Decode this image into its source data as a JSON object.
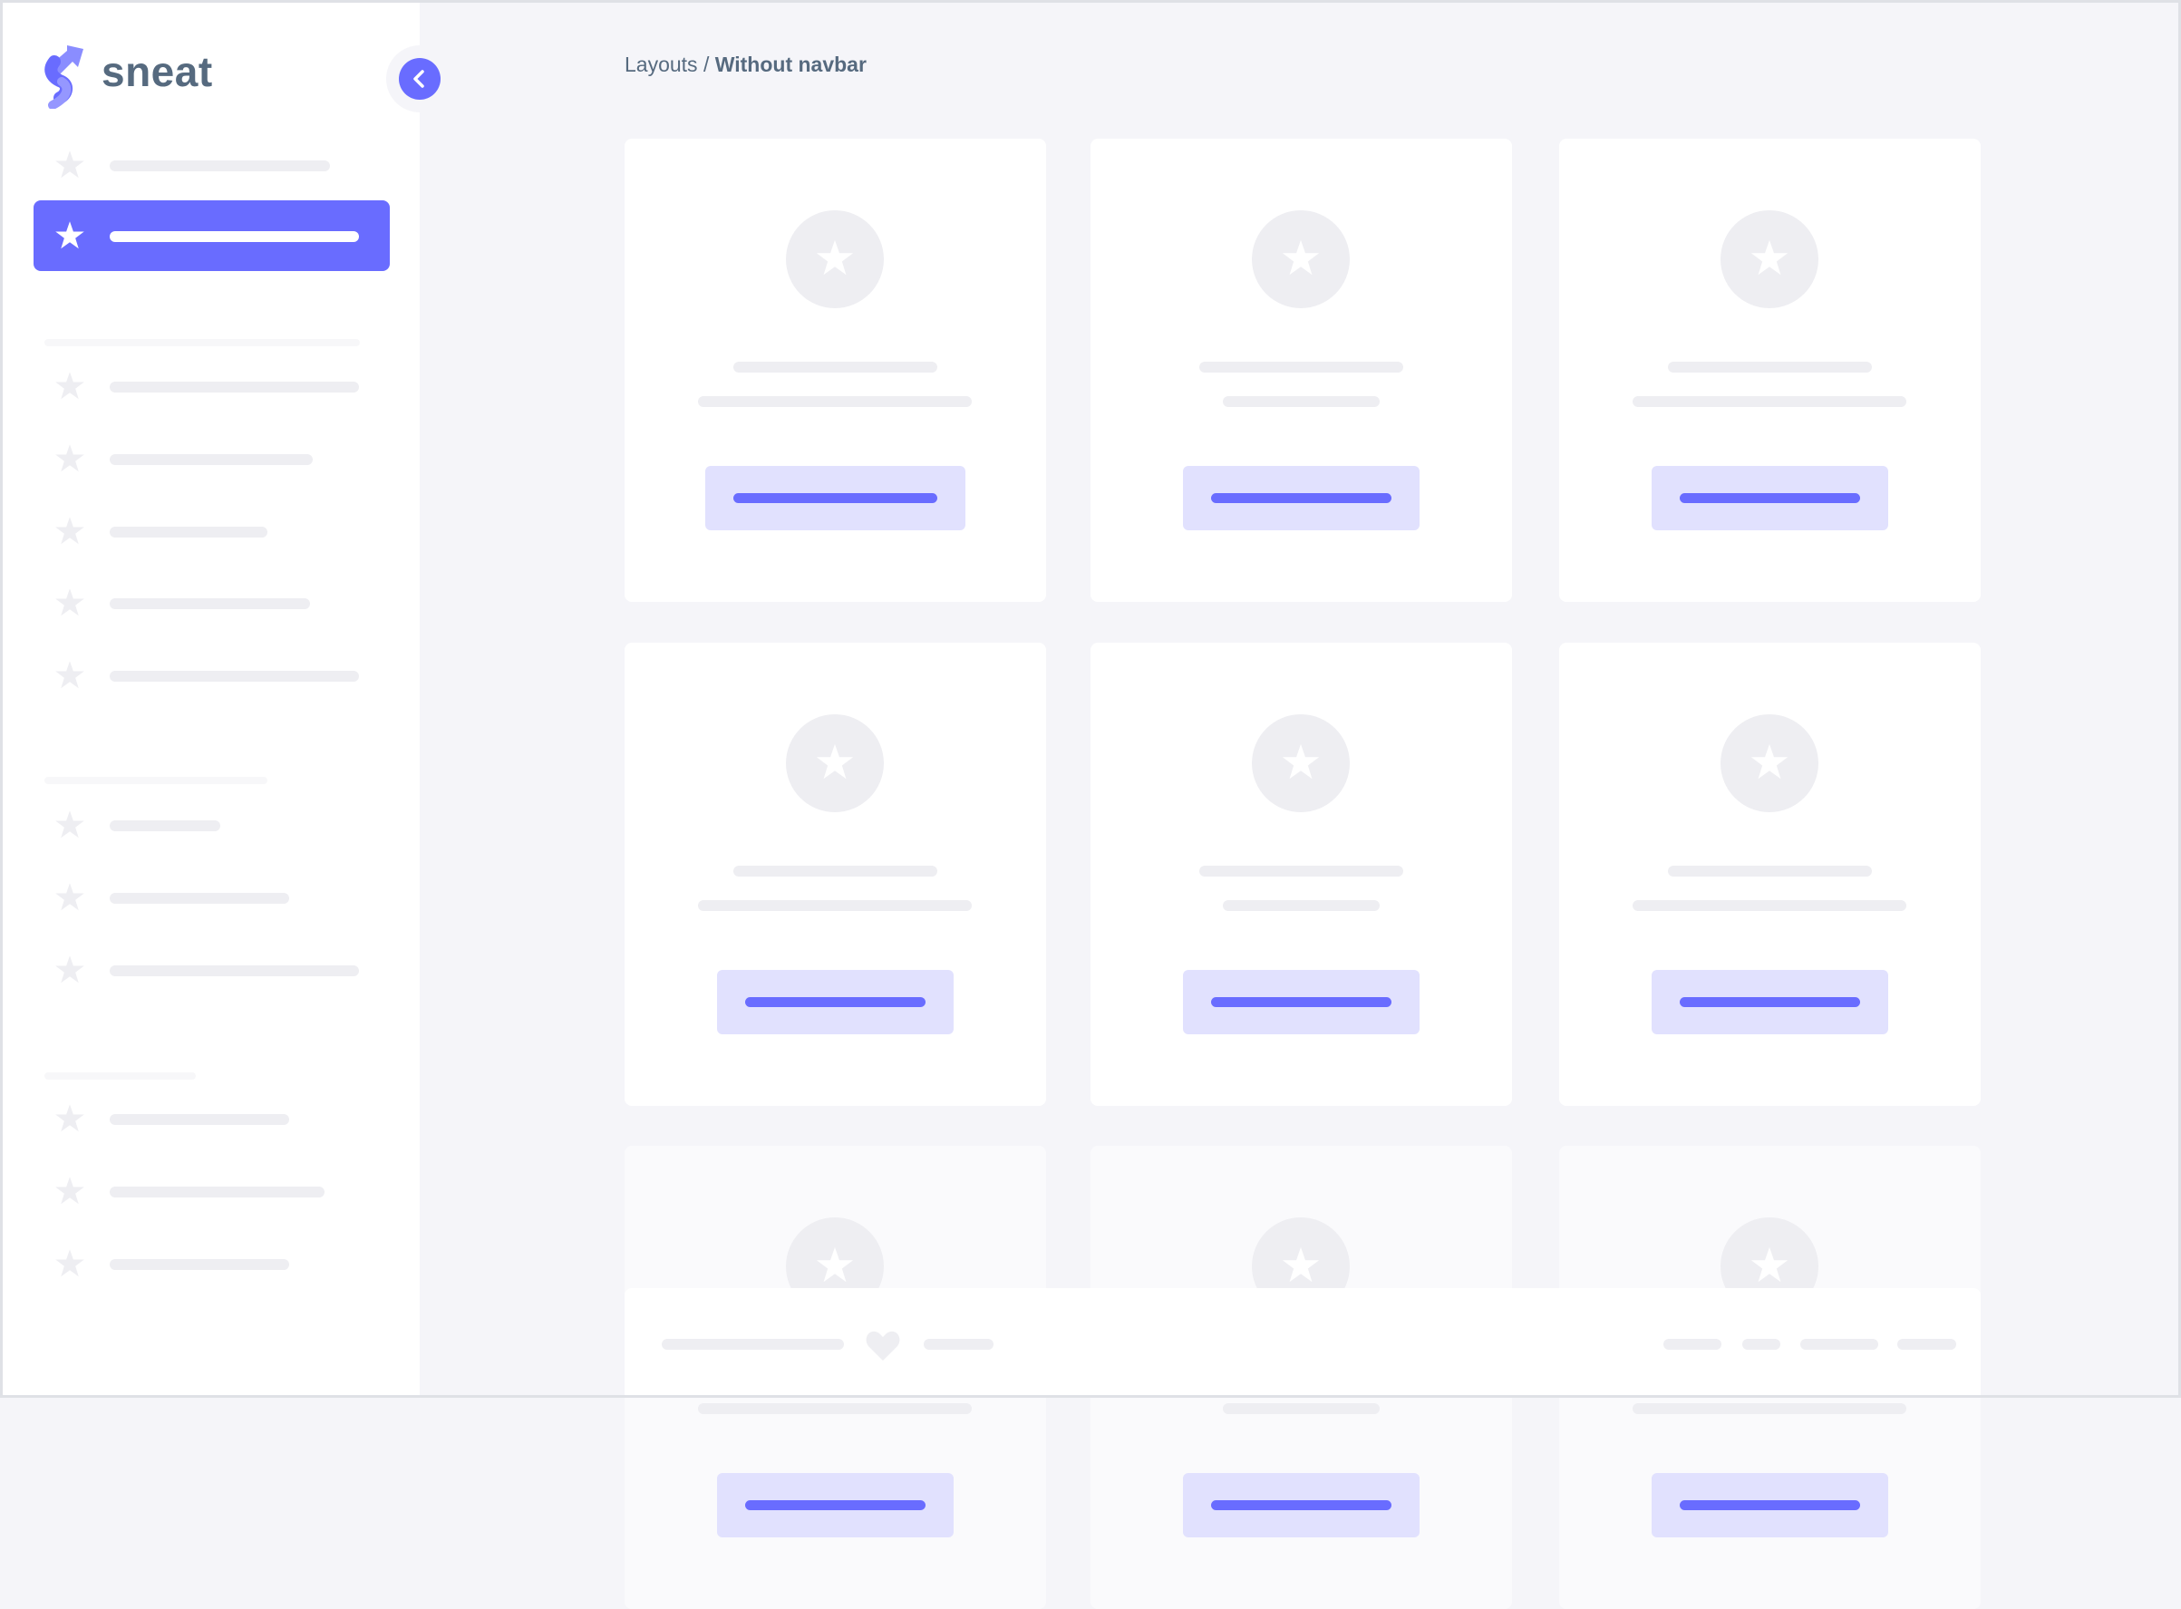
{
  "brand": {
    "name": "sneat"
  },
  "breadcrumb": {
    "parent": "Layouts",
    "separator": " / ",
    "current": "Without navbar"
  },
  "sidebar": {
    "toggle_icon": "chevron-left-icon",
    "item_icon": "star-icon",
    "active_index": 1
  },
  "colors": {
    "accent": "#696cff",
    "accent_light": "#e1e1fe",
    "skeleton": "#eeeef2",
    "text": "#566a7f",
    "background": "#f5f5f9"
  },
  "footer": {
    "icon": "heart-icon"
  }
}
